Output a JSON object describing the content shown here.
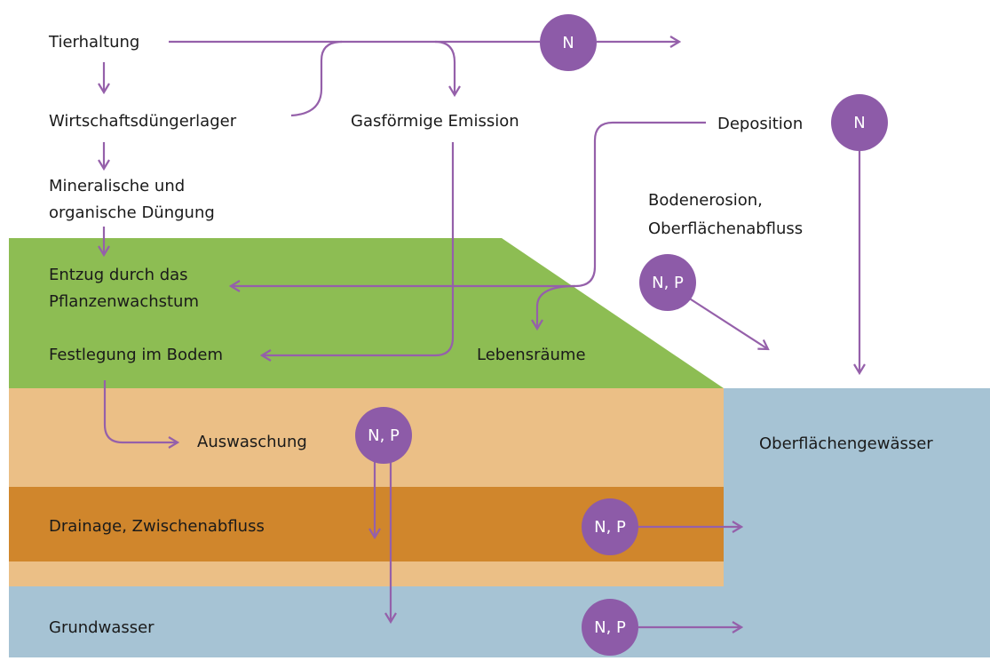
{
  "nodes": [
    {
      "label": "Tierhaltung"
    },
    {
      "label": "Wirtschaftsdüngerlager"
    },
    {
      "label": "Mineralische und"
    },
    {
      "label": "organische Düngung"
    },
    {
      "label": "Entzug durch das"
    },
    {
      "label": "Pflanzenwachstum"
    },
    {
      "label": "Festlegung im Bodem"
    },
    {
      "label": "Gasförmige Emission"
    },
    {
      "label": "Deposition"
    },
    {
      "label": "Bodenerosion,"
    },
    {
      "label": "Oberflächenabfluss"
    },
    {
      "label": "Lebensräume"
    },
    {
      "label": "Auswaschung"
    },
    {
      "label": "Oberflächengewässer"
    },
    {
      "label": "Drainage, Zwischenabfluss"
    },
    {
      "label": "Grundwasser"
    }
  ],
  "badges": [
    {
      "label": "N"
    },
    {
      "label": "N"
    },
    {
      "label": "N, P"
    },
    {
      "label": "N, P"
    },
    {
      "label": "N, P"
    },
    {
      "label": "N, P"
    }
  ]
}
